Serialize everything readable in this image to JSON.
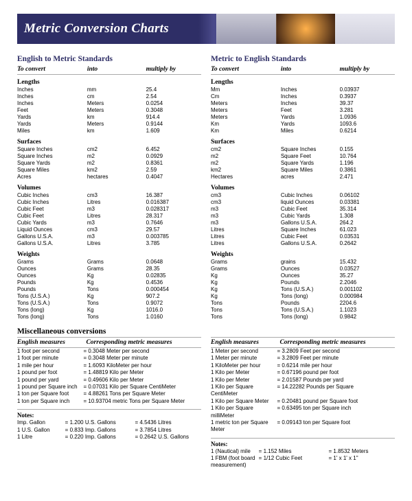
{
  "title": "Metric Conversion Charts",
  "colors": {
    "header_bg": "#2e2e66",
    "accent": "#2e2e66",
    "rule": "#aaaaaa",
    "text": "#000000",
    "bg": "#ffffff"
  },
  "left": {
    "heading": "English to Metric Standards",
    "cols": [
      "To convert",
      "into",
      "multiply by"
    ],
    "groups": [
      {
        "title": "Lengths",
        "rows": [
          [
            "Inches",
            "mm",
            "25.4"
          ],
          [
            "Inches",
            "cm",
            "2.54"
          ],
          [
            "Inches",
            "Meters",
            "0.0254"
          ],
          [
            "Feet",
            "Meters",
            "0.3048"
          ],
          [
            "Yards",
            "km",
            "914.4"
          ],
          [
            "Yards",
            "Meters",
            "0.9144"
          ],
          [
            "Miles",
            "km",
            "1.609"
          ]
        ]
      },
      {
        "title": "Surfaces",
        "rows": [
          [
            "Square Inches",
            "cm2",
            "6.452"
          ],
          [
            "Square Inches",
            "m2",
            "0.0929"
          ],
          [
            "Square Yards",
            "m2",
            "0.8361"
          ],
          [
            "Square Miles",
            "km2",
            "2.59"
          ],
          [
            "Acres",
            "hectares",
            "0.4047"
          ]
        ]
      },
      {
        "title": "Volumes",
        "rows": [
          [
            "Cubic Inches",
            "cm3",
            "16.387"
          ],
          [
            "Cubic Inches",
            "Litres",
            "0.016387"
          ],
          [
            "Cubic Feet",
            "m3",
            "0.028317"
          ],
          [
            "Cubic Feet",
            "Litres",
            "28.317"
          ],
          [
            "Cubic Yards",
            "m3",
            "0.7646"
          ],
          [
            "Liquid Ounces",
            "cm3",
            "29.57"
          ],
          [
            "Gallons U.S.A.",
            "m3",
            "0.003785"
          ],
          [
            "Gallons U.S.A.",
            "Litres",
            "3.785"
          ]
        ]
      },
      {
        "title": "Weights",
        "rows": [
          [
            "Grams",
            "Grams",
            "0.0648"
          ],
          [
            "Ounces",
            "Grams",
            "28.35"
          ],
          [
            "Ounces",
            "Kg",
            "0.02835"
          ],
          [
            "Pounds",
            "Kg",
            "0.4536"
          ],
          [
            "Pounds",
            "Tons",
            "0.000454"
          ],
          [
            "Tons (U.S.A.)",
            "Kg",
            "907.2"
          ],
          [
            "Tons (U.S.A.)",
            "Tons",
            "0.9072"
          ],
          [
            "Tons (long)",
            "Kg",
            "1016.0"
          ],
          [
            "Tons (long)",
            "Tons",
            "1.0160"
          ]
        ]
      }
    ]
  },
  "right": {
    "heading": "Metric to English Standards",
    "cols": [
      "To convert",
      "into",
      "multiply by"
    ],
    "groups": [
      {
        "title": "Lengths",
        "rows": [
          [
            "Mm",
            "Inches",
            "0.03937"
          ],
          [
            "Cm",
            "Inches",
            "0.3937"
          ],
          [
            "Meters",
            "Inches",
            "39.37"
          ],
          [
            "Meters",
            "Feet",
            "3.281"
          ],
          [
            "Meters",
            "Yards",
            "1.0936"
          ],
          [
            "Km",
            "Yards",
            "1093.6"
          ],
          [
            "Km",
            "Miles",
            "0.6214"
          ]
        ]
      },
      {
        "title": "Surfaces",
        "rows": [
          [
            "cm2",
            "Square Inches",
            "0.155"
          ],
          [
            "m2",
            "Square Feet",
            "10.764"
          ],
          [
            "m2",
            "Square Yards",
            "1.196"
          ],
          [
            "km2",
            "Square Miles",
            "0.3861"
          ],
          [
            "Hectares",
            "acres",
            "2.471"
          ]
        ]
      },
      {
        "title": "Volumes",
        "rows": [
          [
            "cm3",
            "Cubic Inches",
            "0.06102"
          ],
          [
            "cm3",
            "liquid Ounces",
            "0.03381"
          ],
          [
            "m3",
            "Cubic Feet",
            "35.314"
          ],
          [
            "m3",
            "Cubic Yards",
            "1.308"
          ],
          [
            "m3",
            "Gallons U.S.A.",
            "264.2"
          ],
          [
            "Litres",
            "Square Inches",
            "61.023"
          ],
          [
            "Litres",
            "Cubic Feet",
            "0.03531"
          ],
          [
            "Litres",
            "Gallons U.S.A.",
            "0.2642"
          ]
        ]
      },
      {
        "title": "Weights",
        "rows": [
          [
            "Grams",
            "grains",
            "15.432"
          ],
          [
            "Grams",
            "Ounces",
            "0.03527"
          ],
          [
            "Kg",
            "Ounces",
            "35.27"
          ],
          [
            "Kg",
            "Pounds",
            "2.2046"
          ],
          [
            "Kg",
            "Tons (U.S.A.)",
            "0.001102"
          ],
          [
            "Kg",
            "Tons (long)",
            "0.000984"
          ],
          [
            "Tons",
            "Pounds",
            "2204.6"
          ],
          [
            "Tons",
            "Tons (U.S.A.)",
            "1.1023"
          ],
          [
            "Tons",
            "Tons (long)",
            "0.9842"
          ]
        ]
      }
    ]
  },
  "misc": {
    "heading": "Miscellaneous conversions",
    "cols": [
      "English measures",
      "Corresponding metric measures"
    ],
    "left_rows": [
      [
        "1 foot per second",
        "0.3048 Meter per second"
      ],
      [
        "1 foot per minute",
        "0.3048 Meter per minute"
      ],
      [
        "1 mile per hour",
        "1.6093 KiloMeter per hour"
      ],
      [
        "1 pound per foot",
        "1.48819 Kilo per Meter"
      ],
      [
        "1 pound per yard",
        "0.49606 Kilo per Meter"
      ],
      [
        "1 pound per Square inch",
        "0.07031 Kilo per Square CentiMeter"
      ],
      [
        "1 ton per Square foot",
        "4.88261 Tons per Square Meter"
      ],
      [
        "1 ton per Square inch",
        "10.93704 metric Tons per Square Meter"
      ]
    ],
    "right_cols": [
      "English measures",
      "Corresponding metric measures"
    ],
    "right_rows": [
      [
        "1 Meter per second",
        "3.2809 Feet per second"
      ],
      [
        "1 Meter per minute",
        "3.2809 Feet per minute"
      ],
      [
        "1 KiloMeter per hour",
        "0.6214 mile per hour"
      ],
      [
        "1 Kilo per Meter",
        "0.67196 pound per foot"
      ],
      [
        "1 Kilo per Meter",
        "2.01587 Pounds per yard"
      ],
      [
        "1 Kilo per Square CentiMeter",
        "14.22282 Pounds per Square"
      ],
      [
        "1 Kilo per Square Meter",
        "0.20481 pound per Square foot"
      ],
      [
        "1 Kilo per Square milliMeter",
        "0.63495 ton per Square inch"
      ],
      [
        "1 metric ton per Square Meter",
        "0.09143 ton per Square foot"
      ]
    ]
  },
  "notes": {
    "heading": "Notes:",
    "left": [
      [
        "Imp. Gallon",
        "1.200 U.S. Gallons",
        "4.5436 Litres"
      ],
      [
        "1 U.S. Gallon",
        "0.833 Imp. Gallons",
        "3.7854 Litres"
      ],
      [
        "1 Litre",
        "0.220 Imp. Gallons",
        "0.2642 U.S. Gallons"
      ]
    ],
    "right": [
      [
        "1 (Nautical) mile",
        "1.152 Miles",
        "1.8532 Meters"
      ],
      [
        "1 FBM (foot board measurement)",
        "1/12 Cubic Feet",
        "1' x 1' x 1\""
      ]
    ]
  }
}
